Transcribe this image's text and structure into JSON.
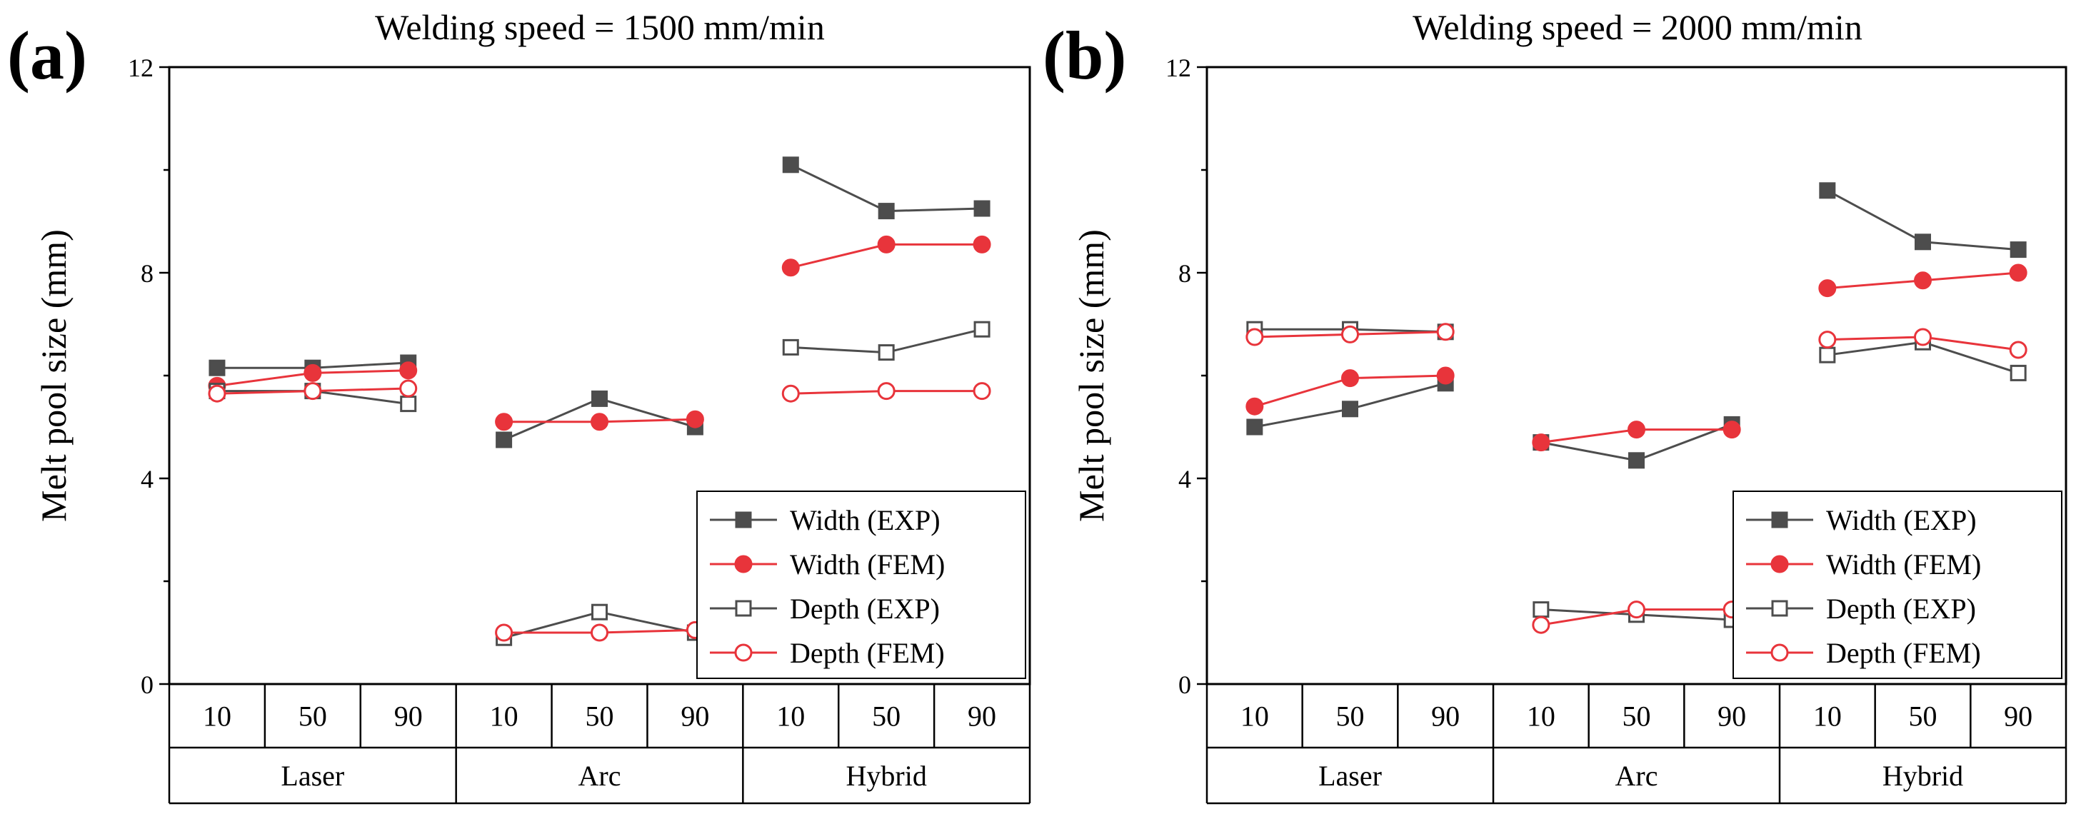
{
  "chart_data": [
    {
      "type": "line",
      "panel_label": "(a)",
      "title": "Welding speed = 1500 mm/min",
      "ylabel": "Melt pool size (mm)",
      "ylim": [
        0,
        12
      ],
      "yticks": [
        "0",
        "4",
        "8",
        "12"
      ],
      "groups": [
        {
          "name": "Laser",
          "categories": [
            "10",
            "50",
            "90"
          ]
        },
        {
          "name": "Arc",
          "categories": [
            "10",
            "50",
            "90"
          ]
        },
        {
          "name": "Hybrid",
          "categories": [
            "10",
            "50",
            "90"
          ]
        }
      ],
      "legend": [
        "Width (EXP)",
        "Width (FEM)",
        "Depth (EXP)",
        "Depth (FEM)"
      ],
      "legend_position": "lower-right",
      "series": [
        {
          "name": "Width (EXP)",
          "color": "#4d4d4d",
          "marker": "square-filled",
          "values": [
            [
              6.15,
              6.15,
              6.25
            ],
            [
              4.75,
              5.55,
              5.0
            ],
            [
              10.1,
              9.2,
              9.25
            ]
          ]
        },
        {
          "name": "Width (FEM)",
          "color": "#e8343b",
          "marker": "circle-filled",
          "values": [
            [
              5.8,
              6.05,
              6.1
            ],
            [
              5.1,
              5.1,
              5.15
            ],
            [
              8.1,
              8.55,
              8.55
            ]
          ]
        },
        {
          "name": "Depth (EXP)",
          "color": "#4d4d4d",
          "marker": "square-open",
          "values": [
            [
              5.7,
              5.7,
              5.45
            ],
            [
              0.9,
              1.4,
              1.0
            ],
            [
              6.55,
              6.45,
              6.9
            ]
          ]
        },
        {
          "name": "Depth (FEM)",
          "color": "#e8343b",
          "marker": "circle-open",
          "values": [
            [
              5.65,
              5.7,
              5.75
            ],
            [
              1.0,
              1.0,
              1.05
            ],
            [
              5.65,
              5.7,
              5.7
            ]
          ]
        }
      ]
    },
    {
      "type": "line",
      "panel_label": "(b)",
      "title": "Welding speed = 2000 mm/min",
      "ylabel": "Melt pool size (mm)",
      "ylim": [
        0,
        12
      ],
      "yticks": [
        "0",
        "4",
        "8",
        "12"
      ],
      "groups": [
        {
          "name": "Laser",
          "categories": [
            "10",
            "50",
            "90"
          ]
        },
        {
          "name": "Arc",
          "categories": [
            "10",
            "50",
            "90"
          ]
        },
        {
          "name": "Hybrid",
          "categories": [
            "10",
            "50",
            "90"
          ]
        }
      ],
      "legend": [
        "Width (EXP)",
        "Width (FEM)",
        "Depth (EXP)",
        "Depth (FEM)"
      ],
      "legend_position": "lower-right",
      "series": [
        {
          "name": "Width (EXP)",
          "color": "#4d4d4d",
          "marker": "square-filled",
          "values": [
            [
              5.0,
              5.35,
              5.85
            ],
            [
              4.7,
              4.35,
              5.05
            ],
            [
              9.6,
              8.6,
              8.45
            ]
          ]
        },
        {
          "name": "Width (FEM)",
          "color": "#e8343b",
          "marker": "circle-filled",
          "values": [
            [
              5.4,
              5.95,
              6.0
            ],
            [
              4.7,
              4.95,
              4.95
            ],
            [
              7.7,
              7.85,
              8.0
            ]
          ]
        },
        {
          "name": "Depth (EXP)",
          "color": "#4d4d4d",
          "marker": "square-open",
          "values": [
            [
              6.9,
              6.9,
              6.85
            ],
            [
              1.45,
              1.35,
              1.25
            ],
            [
              6.4,
              6.65,
              6.05
            ]
          ]
        },
        {
          "name": "Depth (FEM)",
          "color": "#e8343b",
          "marker": "circle-open",
          "values": [
            [
              6.75,
              6.8,
              6.85
            ],
            [
              1.15,
              1.45,
              1.45
            ],
            [
              6.7,
              6.75,
              6.5
            ]
          ]
        }
      ]
    }
  ]
}
